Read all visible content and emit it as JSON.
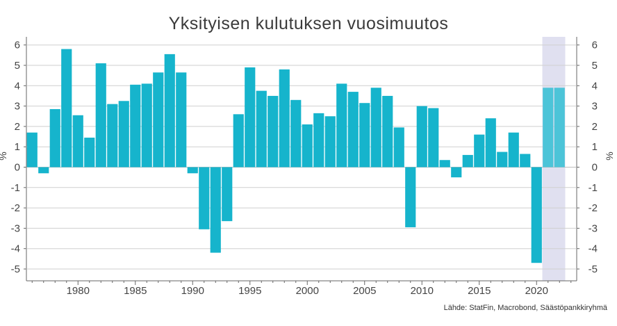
{
  "chart_data": {
    "type": "bar",
    "title": "Yksityisen kulutuksen vuosimuutos",
    "ylabel_left": "%",
    "ylabel_right": "%",
    "ylim": [
      -5.5,
      6.3
    ],
    "yticks": [
      6,
      5,
      4,
      3,
      2,
      1,
      0,
      -1,
      -2,
      -3,
      -4,
      -5
    ],
    "xticks": [
      1980,
      1985,
      1990,
      1995,
      2000,
      2005,
      2010,
      2015,
      2020
    ],
    "x": [
      1976,
      1977,
      1978,
      1979,
      1980,
      1981,
      1982,
      1983,
      1984,
      1985,
      1986,
      1987,
      1988,
      1989,
      1990,
      1991,
      1992,
      1993,
      1994,
      1995,
      1996,
      1997,
      1998,
      1999,
      2000,
      2001,
      2002,
      2003,
      2004,
      2005,
      2006,
      2007,
      2008,
      2009,
      2010,
      2011,
      2012,
      2013,
      2014,
      2015,
      2016,
      2017,
      2018,
      2019,
      2020,
      2021,
      2022
    ],
    "values": [
      1.7,
      -0.3,
      2.85,
      5.8,
      2.55,
      1.45,
      5.1,
      3.1,
      3.25,
      4.05,
      4.1,
      4.65,
      5.55,
      4.65,
      -0.3,
      -3.05,
      -4.2,
      -2.65,
      2.6,
      4.9,
      3.75,
      3.5,
      4.8,
      3.3,
      2.1,
      2.65,
      2.5,
      4.1,
      3.7,
      3.15,
      3.9,
      3.5,
      1.95,
      -2.95,
      3.0,
      2.9,
      0.35,
      -0.5,
      0.6,
      1.6,
      2.4,
      0.75,
      1.7,
      0.65,
      -4.7,
      3.9,
      3.9
    ],
    "forecast_from": 2021,
    "forecast_band": [
      2021,
      2022
    ],
    "colors": {
      "bar": "#16b4cc",
      "forecast_bar": "#4cc4d8",
      "forecast_band": "#e0e0f0",
      "grid": "#cfcfcf"
    },
    "grid": true,
    "source": "Lähde: StatFin, Macrobond, Säästöpankkiryhmä"
  }
}
